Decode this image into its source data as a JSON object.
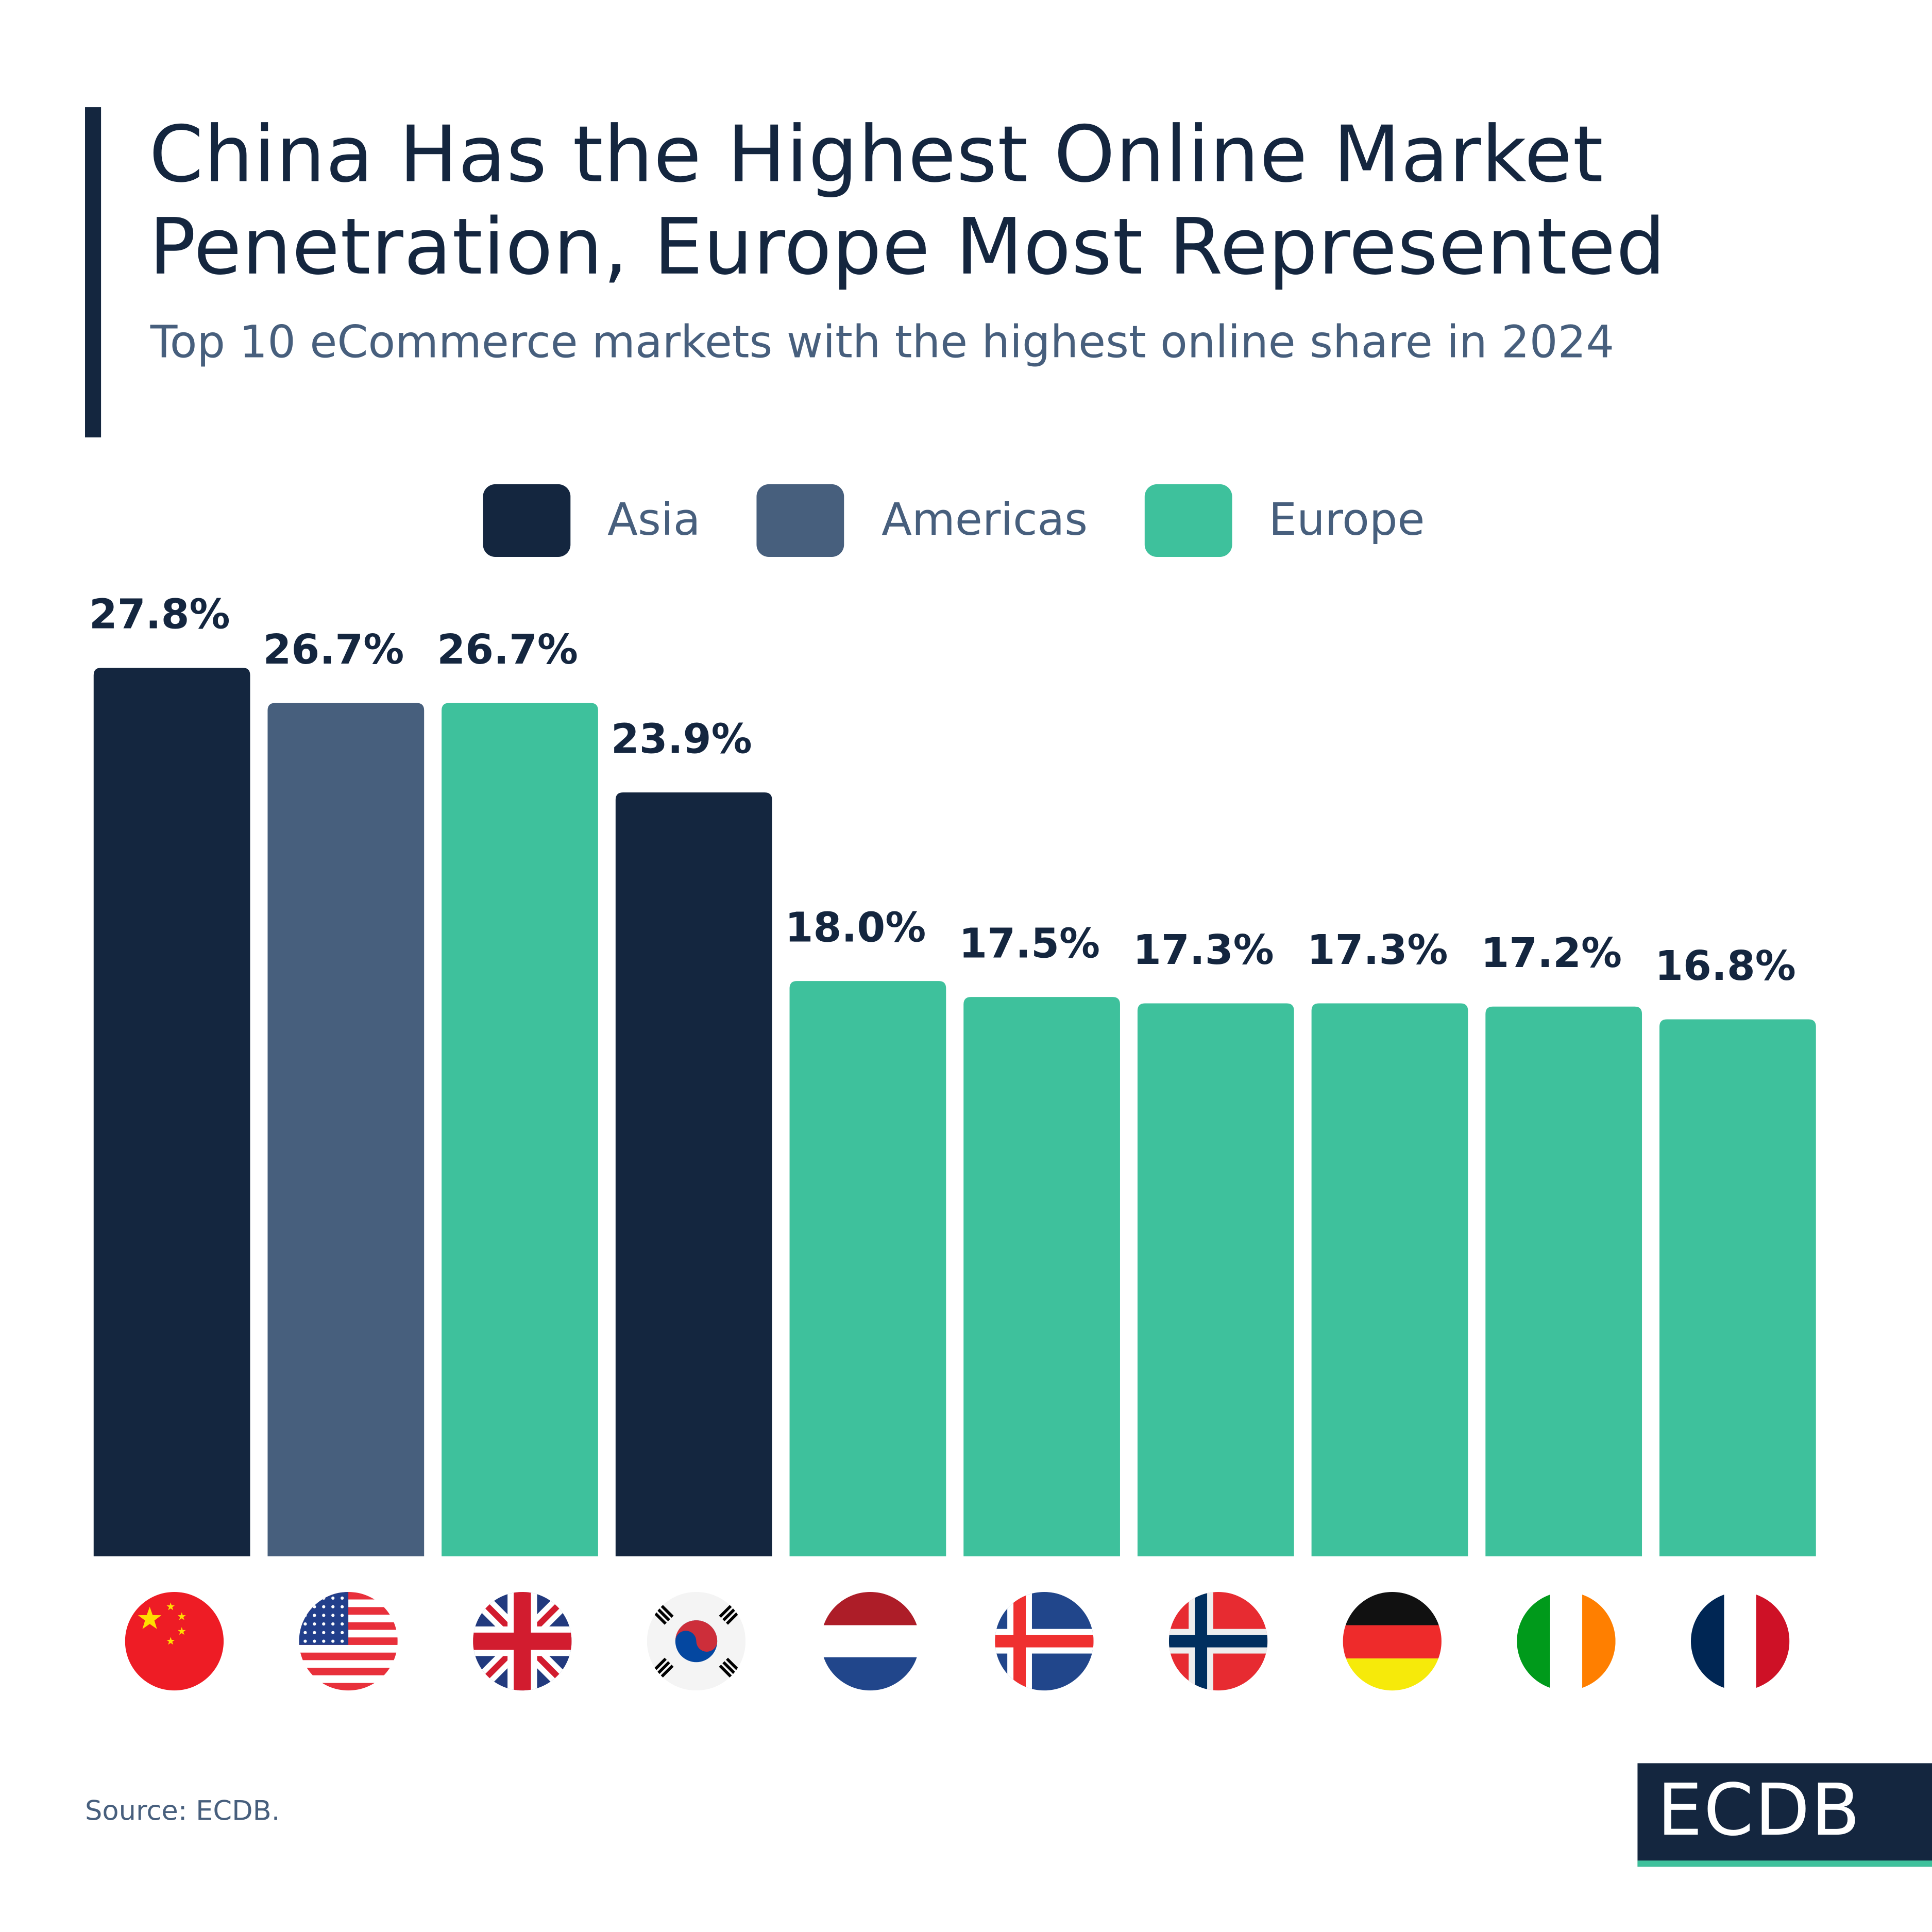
{
  "title": "China Has the Highest Online Market Penetration, Europe Most Represented",
  "subtitle": "Top 10 eCommerce markets with the highest online share in 2024",
  "source": "Source: ECDB.",
  "logo": "ECDB",
  "colors": {
    "Asia": "#14263f",
    "Americas": "#475f7d",
    "Europe": "#3ec19c"
  },
  "chart_data": {
    "type": "bar",
    "title": "China Has the Highest Online Market Penetration, Europe Most Represented",
    "subtitle": "Top 10 eCommerce markets with the highest online share in 2024",
    "categories": [
      "China",
      "United States",
      "United Kingdom",
      "South Korea",
      "Netherlands",
      "Iceland",
      "Norway",
      "Germany",
      "Ireland",
      "France"
    ],
    "category_icons": [
      "flag-china",
      "flag-usa",
      "flag-uk",
      "flag-south-korea",
      "flag-netherlands",
      "flag-iceland",
      "flag-norway",
      "flag-germany",
      "flag-ireland",
      "flag-france"
    ],
    "values": [
      27.8,
      26.7,
      26.7,
      23.9,
      18.0,
      17.5,
      17.3,
      17.3,
      17.2,
      16.8
    ],
    "labels": [
      "27.8%",
      "26.7%",
      "26.7%",
      "23.9%",
      "18.0%",
      "17.5%",
      "17.3%",
      "17.3%",
      "17.2%",
      "16.8%"
    ],
    "regions": [
      "Asia",
      "Americas",
      "Europe",
      "Asia",
      "Europe",
      "Europe",
      "Europe",
      "Europe",
      "Europe",
      "Europe"
    ],
    "legend": [
      "Asia",
      "Americas",
      "Europe"
    ],
    "legend_position": "top-center",
    "unit": "%",
    "grid": false,
    "ylim": [
      0,
      27.8
    ]
  }
}
